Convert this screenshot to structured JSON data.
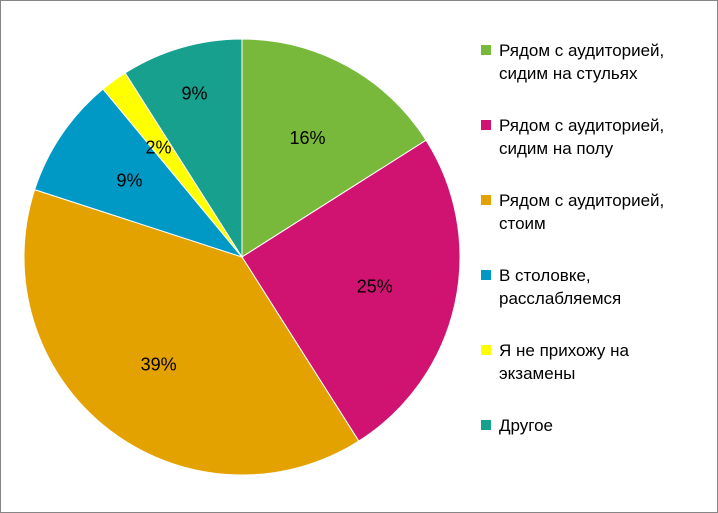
{
  "chart_data": {
    "type": "pie",
    "categories": [
      "Рядом с аудиторией, сидим на стульях",
      "Рядом с аудиторией, сидим на полу",
      "Рядом с аудиторией, стоим",
      "В столовке, расслабляемся",
      "Я не прихожу на экзамены",
      "Другое"
    ],
    "legend_lines": [
      [
        "Рядом с аудиторией,",
        "сидим на стульях"
      ],
      [
        "Рядом с аудиторией,",
        "сидим на полу"
      ],
      [
        "Рядом с аудиторией,",
        "стоим"
      ],
      [
        "В столовке,",
        "расслабляемся"
      ],
      [
        "Я не прихожу на",
        "экзамены"
      ],
      [
        "Другое"
      ]
    ],
    "values": [
      16,
      25,
      39,
      9,
      2,
      9
    ],
    "labels": [
      "16%",
      "25%",
      "39%",
      "9%",
      "2%",
      "9%"
    ],
    "colors": [
      "#78B83A",
      "#D01370",
      "#E3A200",
      "#0099C6",
      "#FFFF00",
      "#17A08E"
    ],
    "legend_position": "right",
    "start": "top",
    "direction": "clockwise"
  }
}
